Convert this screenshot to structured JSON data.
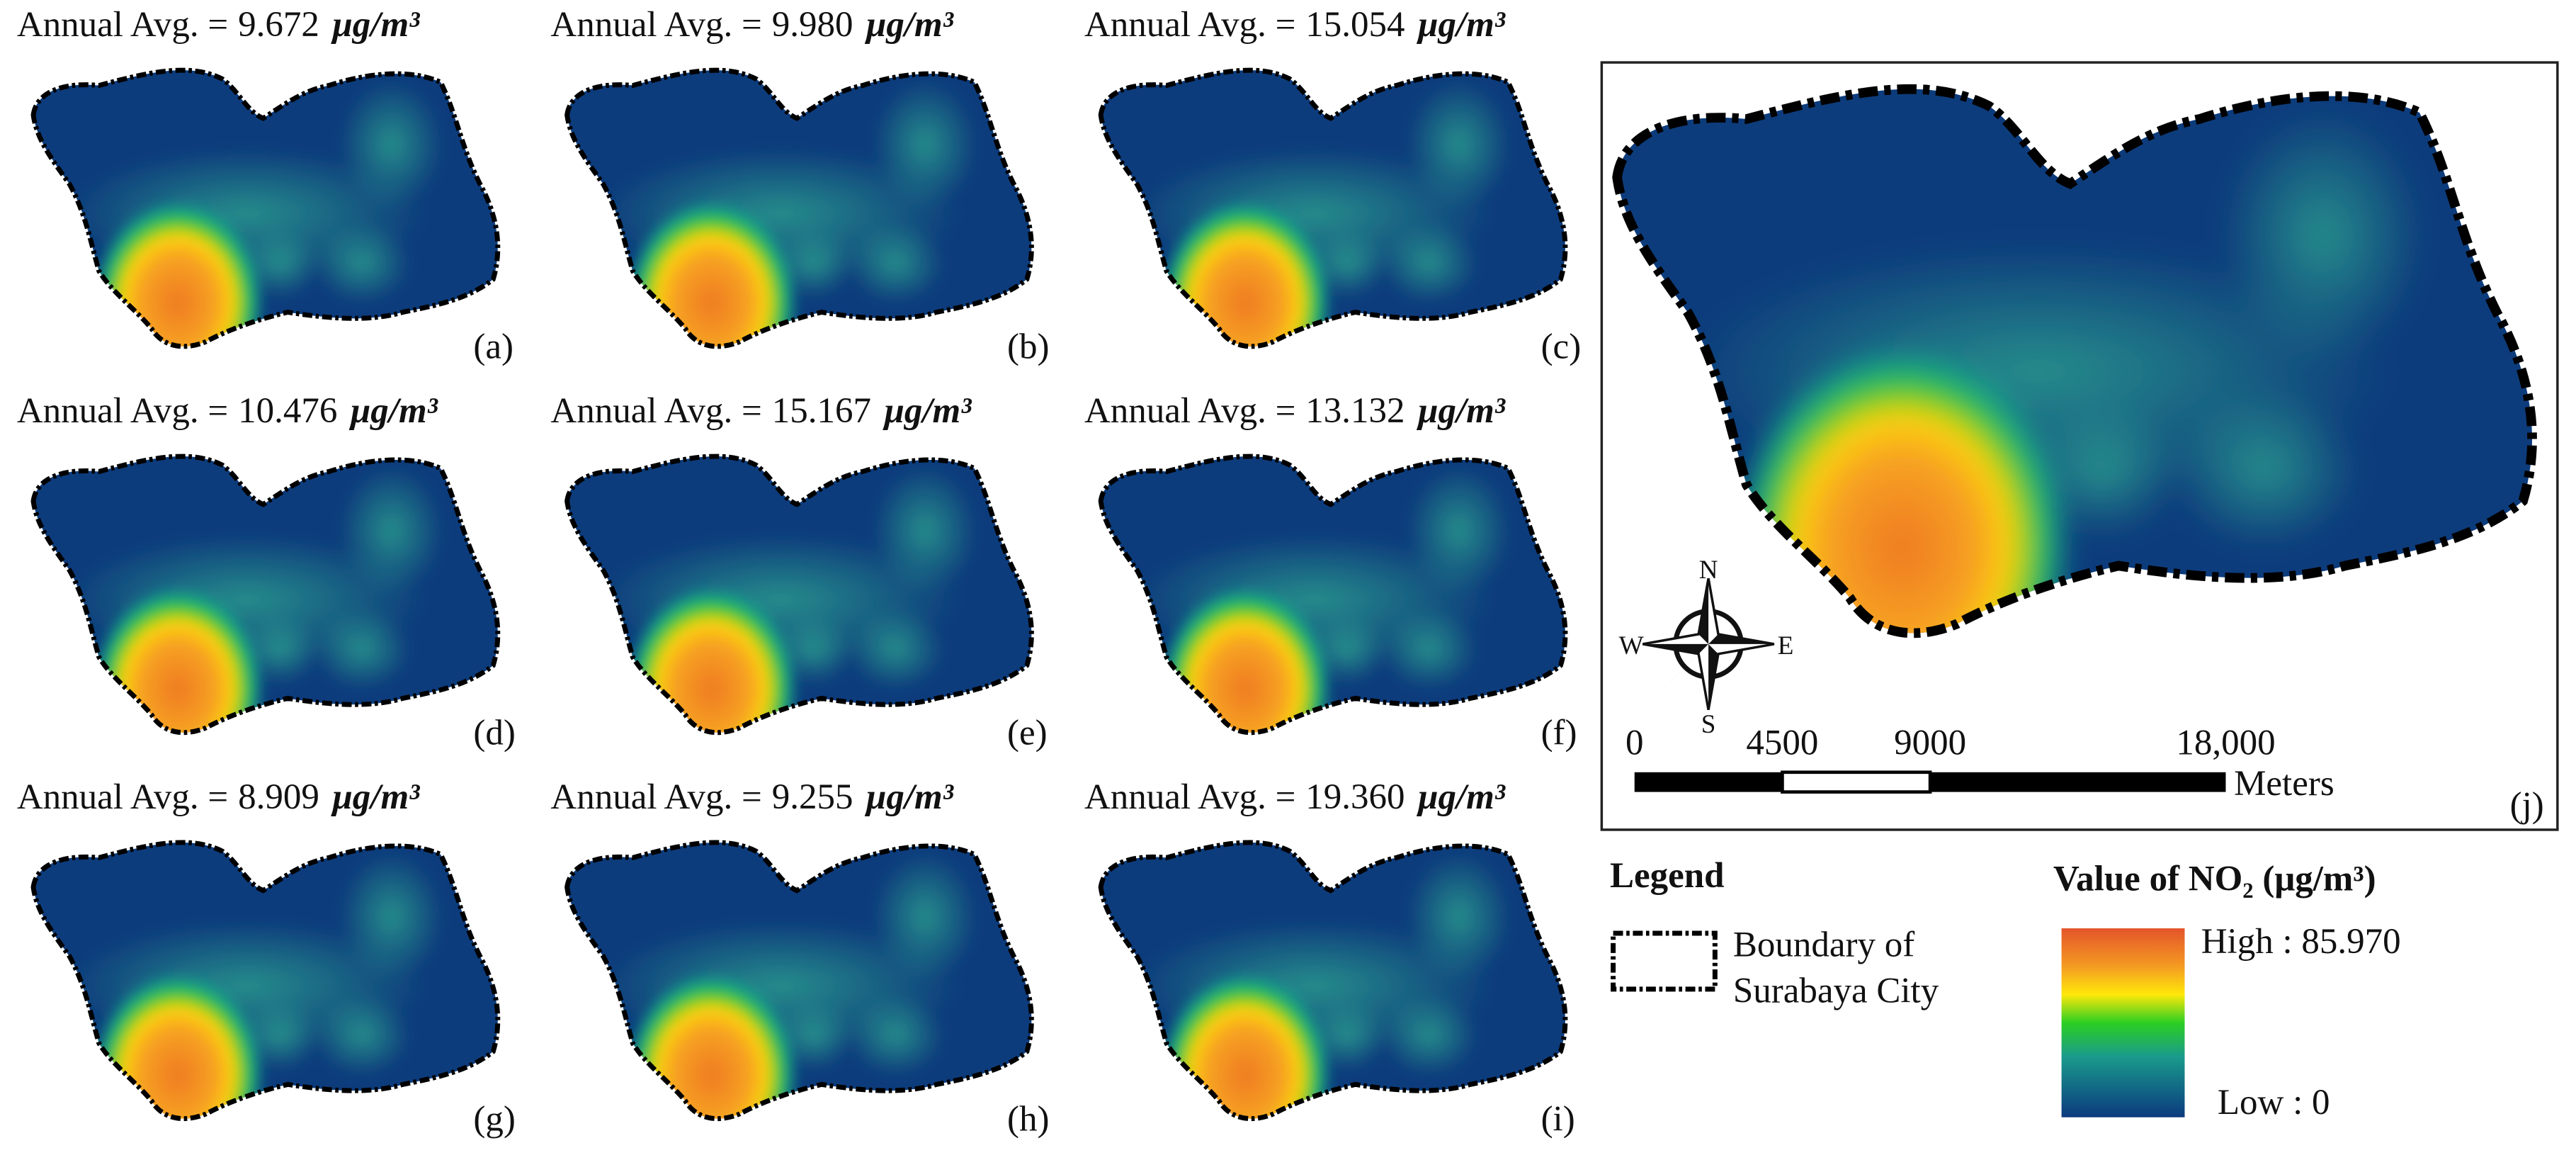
{
  "avg_prefix": "Annual Avg. =",
  "unit": "μg/m³",
  "panels": [
    {
      "avg": "9.672",
      "label": "(a)"
    },
    {
      "avg": "9.980",
      "label": "(b)"
    },
    {
      "avg": "15.054",
      "label": "(c)"
    },
    {
      "avg": "10.476",
      "label": "(d)"
    },
    {
      "avg": "15.167",
      "label": "(e)"
    },
    {
      "avg": "13.132",
      "label": "(f)"
    },
    {
      "avg": "8.909",
      "label": "(g)"
    },
    {
      "avg": "9.255",
      "label": "(h)"
    },
    {
      "avg": "19.360",
      "label": "(i)"
    }
  ],
  "main_map": {
    "label": "(j)",
    "compass": {
      "n": "N",
      "s": "S",
      "e": "E",
      "w": "W"
    },
    "scale_bar": {
      "ticks": [
        "0",
        "4500",
        "9000",
        "18,000"
      ],
      "unit": "Meters"
    }
  },
  "legend": {
    "title": "Legend",
    "boundary_label": [
      "Boundary of",
      "Surabaya City"
    ],
    "value_title": "Value of  NO₂ (μg/m³)",
    "high": "High : 85.970",
    "low": "Low : 0"
  }
}
